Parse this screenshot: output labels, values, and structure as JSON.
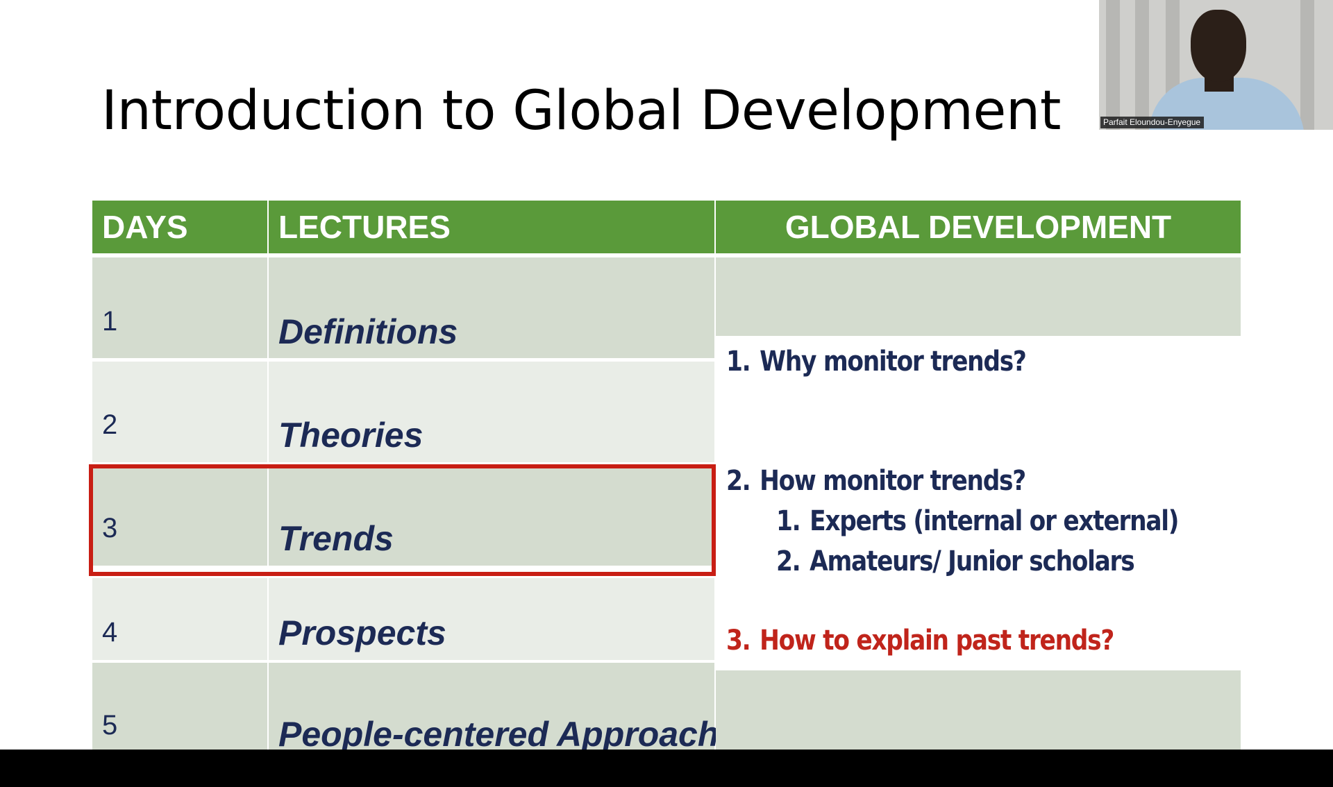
{
  "slide": {
    "title": "Introduction to Global Development",
    "headers": {
      "days": "DAYS",
      "lectures": "LECTURES",
      "global": "GLOBAL DEVELOPMENT"
    },
    "rows": [
      {
        "day": "1",
        "lecture": "Definitions"
      },
      {
        "day": "2",
        "lecture": "Theories"
      },
      {
        "day": "3",
        "lecture": "Trends"
      },
      {
        "day": "4",
        "lecture": "Prospects"
      },
      {
        "day": "5",
        "lecture": "People-centered Approach"
      }
    ],
    "highlighted_row": "3",
    "global_items": [
      {
        "num": "1.",
        "text": "Why monitor trends?"
      },
      {
        "num": "2.",
        "text": "How monitor trends?"
      },
      {
        "num": "1.",
        "text": "Experts (internal or external)"
      },
      {
        "num": "2.",
        "text": "Amateurs/ Junior scholars"
      },
      {
        "num": "3.",
        "text": "How to explain past trends?"
      }
    ]
  },
  "video": {
    "participant_name": "Parfait Eloundou-Enyegue"
  },
  "colors": {
    "header_green": "#5a9a3a",
    "text_navy": "#1c2a55",
    "highlight_red": "#c81e14",
    "alert_red": "#c0241b"
  }
}
